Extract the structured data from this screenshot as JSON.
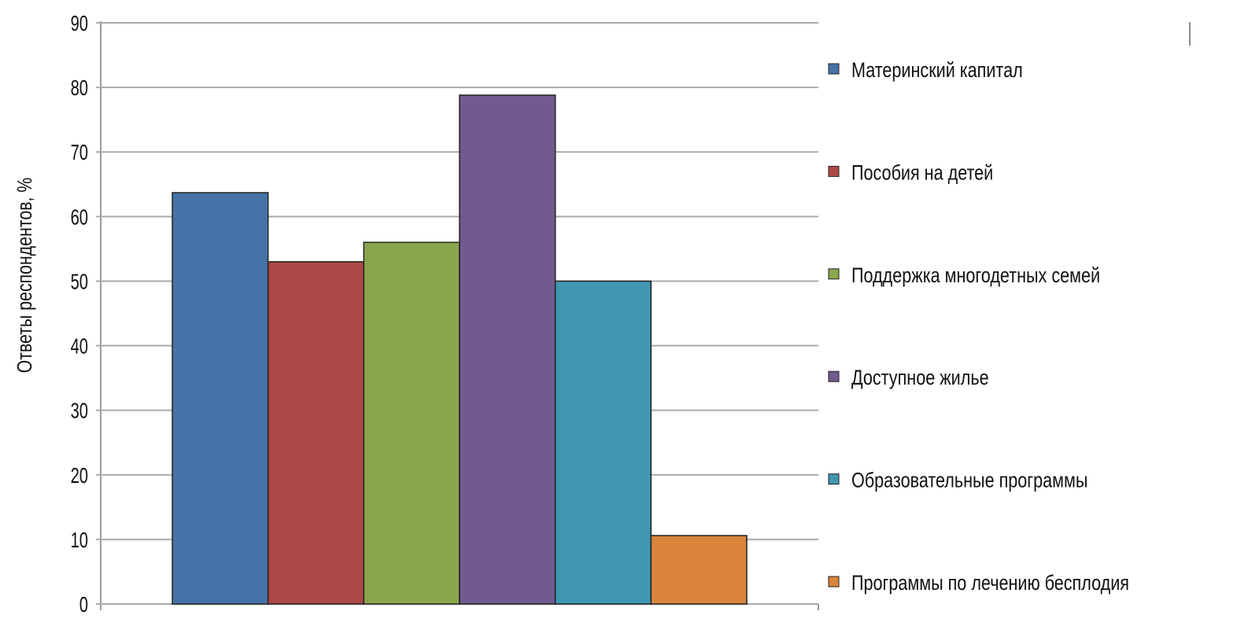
{
  "chart_data": {
    "type": "bar",
    "title": "",
    "xlabel": "",
    "ylabel": "Ответы респондентов, %",
    "ylim": [
      0,
      90
    ],
    "yticks": [
      0,
      10,
      20,
      30,
      40,
      50,
      60,
      70,
      80,
      90
    ],
    "grid": true,
    "legend_position": "right",
    "series": [
      {
        "name": "Материнский капитал",
        "values": [
          63.7
        ],
        "color": "#4673A7"
      },
      {
        "name": "Пособия на детей",
        "values": [
          53.0
        ],
        "color": "#AD4846"
      },
      {
        "name": "Поддержка многодетных семей",
        "values": [
          56.0
        ],
        "color": "#8AA64E"
      },
      {
        "name": "Доступное жилье",
        "values": [
          78.8
        ],
        "color": "#725A8F"
      },
      {
        "name": "Образовательные программы",
        "values": [
          50.0
        ],
        "color": "#3F97B0"
      },
      {
        "name": "Программы по лечению бесплодия",
        "values": [
          10.6
        ],
        "color": "#DB843B"
      }
    ]
  }
}
